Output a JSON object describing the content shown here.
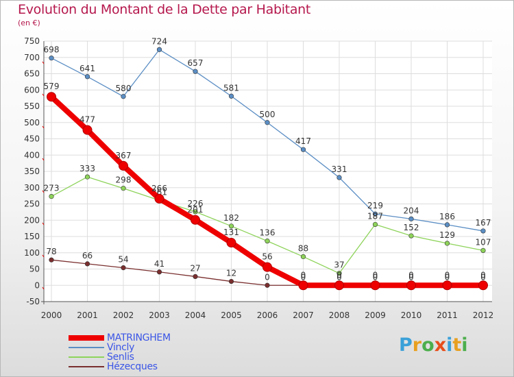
{
  "header": {
    "title": "Evolution du Montant de la Dette par Habitant",
    "unit": "(en €)"
  },
  "logo": {
    "text": "Proxiti",
    "letter_colors": [
      "#3aa0d8",
      "#e8a020",
      "#4cae4c",
      "#e84e1b",
      "#3aa0d8",
      "#e8a020",
      "#4cae4c"
    ]
  },
  "colors": {
    "title": "#b5184d",
    "legend_text": "#3a55e6",
    "grid": "#dddddd",
    "axis": "#555555"
  },
  "chart_data": {
    "type": "line",
    "x": [
      "2000",
      "2001",
      "2002",
      "2003",
      "2004",
      "2005",
      "2006",
      "2007",
      "2008",
      "2009",
      "2010",
      "2011",
      "2012"
    ],
    "ylim": [
      -50,
      750
    ],
    "yticks": [
      -50,
      0,
      50,
      100,
      150,
      200,
      250,
      300,
      350,
      400,
      450,
      500,
      550,
      600,
      650,
      700,
      750
    ],
    "grid": true,
    "legend_position": "bottom-left",
    "series": [
      {
        "name": "Vincly",
        "color": "#5b8ec4",
        "values": [
          698,
          641,
          580,
          724,
          657,
          581,
          500,
          417,
          331,
          219,
          204,
          186,
          167
        ],
        "labels": [
          "698",
          "641",
          "580",
          "724",
          "657",
          "581",
          "500",
          "417",
          "331",
          "219",
          "204",
          "186",
          "167"
        ]
      },
      {
        "name": "Senlis",
        "color": "#8ed35a",
        "values": [
          273,
          333,
          298,
          261,
          226,
          182,
          136,
          88,
          37,
          187,
          152,
          129,
          107
        ],
        "labels": [
          "273",
          "333",
          "298",
          "261",
          "226",
          "182",
          "136",
          "88",
          "37",
          "187",
          "152",
          "129",
          "107"
        ]
      },
      {
        "name": "Hézecques",
        "color": "#7a2e2e",
        "values": [
          78,
          66,
          54,
          41,
          27,
          12,
          0,
          0,
          0,
          0,
          0,
          0,
          0
        ],
        "labels": [
          "78",
          "66",
          "54",
          "41",
          "27",
          "12",
          "0",
          "0",
          "0",
          "0",
          "0",
          "0",
          "0"
        ]
      },
      {
        "name": "MATRINGHEM",
        "color": "#ee0000",
        "values": [
          579,
          477,
          367,
          266,
          201,
          131,
          56,
          0,
          0,
          0,
          0,
          0,
          0
        ],
        "labels": [
          "579",
          "477",
          "367",
          "266",
          "201",
          "131",
          "56",
          "0",
          "0",
          "0",
          "0",
          "0",
          "0"
        ]
      }
    ]
  },
  "legend": {
    "items": [
      {
        "label": "MATRINGHEM",
        "color": "#ee0000",
        "thickness": 8
      },
      {
        "label": "Vincly",
        "color": "#5b8ec4",
        "thickness": 2
      },
      {
        "label": "Senlis",
        "color": "#8ed35a",
        "thickness": 2
      },
      {
        "label": "Hézecques",
        "color": "#7a2e2e",
        "thickness": 2
      }
    ]
  }
}
